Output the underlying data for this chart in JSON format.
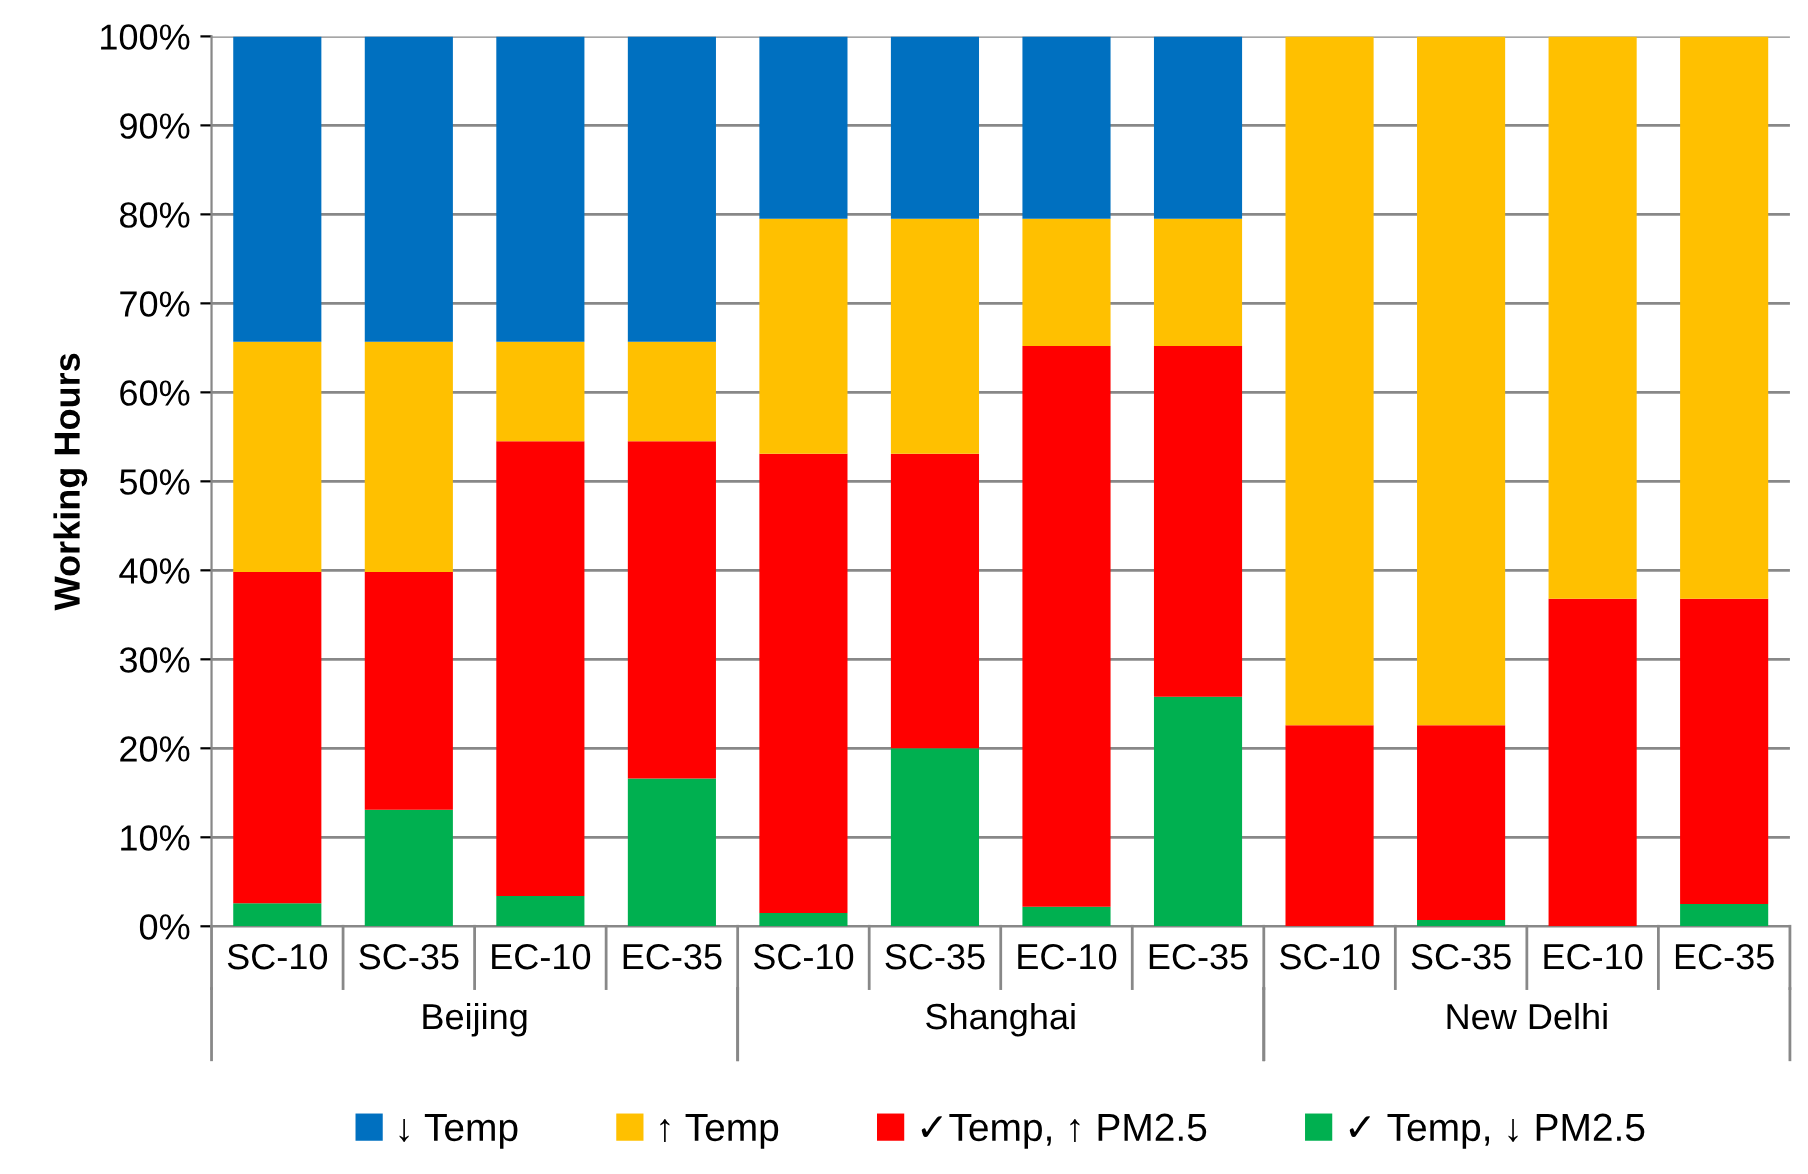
{
  "chart_data": {
    "type": "bar",
    "stacked": true,
    "ylabel": "Working Hours",
    "categories": [
      "SC-10",
      "SC-35",
      "EC-10",
      "EC-35",
      "SC-10",
      "SC-35",
      "EC-10",
      "EC-35",
      "SC-10",
      "SC-35",
      "EC-10",
      "EC-35"
    ],
    "series": [
      {
        "name": "✓ Temp, ↓ PM2.5",
        "color": "#00b050",
        "values": [
          2.6,
          13.1,
          3.4,
          16.6,
          1.5,
          20.0,
          2.2,
          25.8,
          0,
          0.7,
          0,
          2.5
        ]
      },
      {
        "name": "✓Temp, ↑ PM2.5",
        "color": "#ff0000",
        "values": [
          37.2,
          26.7,
          51.1,
          37.9,
          51.6,
          33.1,
          63.0,
          39.4,
          22.6,
          21.9,
          36.8,
          34.3
        ]
      },
      {
        "name": "↑ Temp",
        "color": "#ffc000",
        "values": [
          25.9,
          25.9,
          11.2,
          11.2,
          26.4,
          26.4,
          14.3,
          14.3,
          77.4,
          77.4,
          63.2,
          63.2
        ]
      },
      {
        "name": "↓ Temp",
        "color": "#0070c0",
        "values": [
          34.3,
          34.3,
          34.3,
          34.3,
          20.5,
          20.5,
          20.5,
          20.5,
          0,
          0,
          0,
          0
        ]
      }
    ],
    "ylim": [
      0,
      100
    ],
    "yticks": [
      {
        "value": 0,
        "label": "0%"
      },
      {
        "value": 10,
        "label": "10%"
      },
      {
        "value": 20,
        "label": "20%"
      },
      {
        "value": 30,
        "label": "30%"
      },
      {
        "value": 40,
        "label": "40%"
      },
      {
        "value": 50,
        "label": "50%"
      },
      {
        "value": 60,
        "label": "60%"
      },
      {
        "value": 70,
        "label": "70%"
      },
      {
        "value": 80,
        "label": "80%"
      },
      {
        "value": 90,
        "label": "90%"
      },
      {
        "value": 100,
        "label": "100%"
      }
    ],
    "grid": "y",
    "legend": "bottom",
    "annotations": [
      "Beijing",
      "Shanghai",
      "New Delhi"
    ]
  }
}
